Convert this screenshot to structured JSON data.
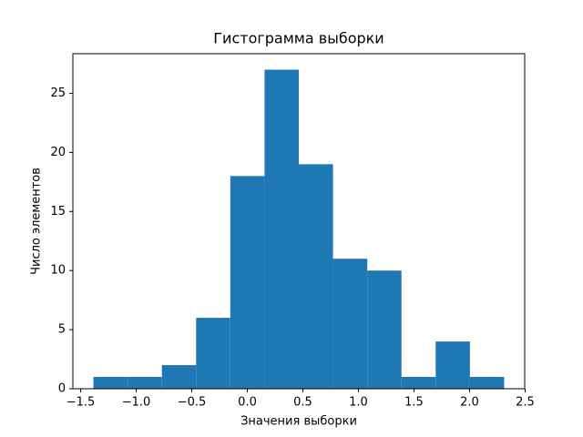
{
  "chart_data": {
    "type": "histogram",
    "title": "Гистограмма выборки",
    "x_label": "Значения выборки",
    "y_label": "Число элементов",
    "bins": [
      -1.385,
      -1.077,
      -0.769,
      -0.461,
      -0.153,
      0.155,
      0.463,
      0.771,
      1.079,
      1.387,
      1.695,
      2.003,
      2.311
    ],
    "values": [
      1,
      1,
      2,
      6,
      18,
      27,
      19,
      11,
      10,
      1,
      4,
      1
    ],
    "color": "#1f77b4",
    "xlim": [
      -1.57,
      2.496
    ],
    "xticks": [
      {
        "value": -1.5,
        "label": "−1.5"
      },
      {
        "value": -1.0,
        "label": "−1.0"
      },
      {
        "value": -0.5,
        "label": "−0.5"
      },
      {
        "value": 0.0,
        "label": "0.0"
      },
      {
        "value": 0.5,
        "label": "0.5"
      },
      {
        "value": 1.0,
        "label": "1.0"
      },
      {
        "value": 1.5,
        "label": "1.5"
      },
      {
        "value": 2.0,
        "label": "2.0"
      },
      {
        "value": 2.5,
        "label": "2.5"
      }
    ],
    "ylim": [
      0,
      28.35
    ],
    "yticks": [
      0,
      5,
      10,
      15,
      20,
      25
    ],
    "grid": false
  }
}
